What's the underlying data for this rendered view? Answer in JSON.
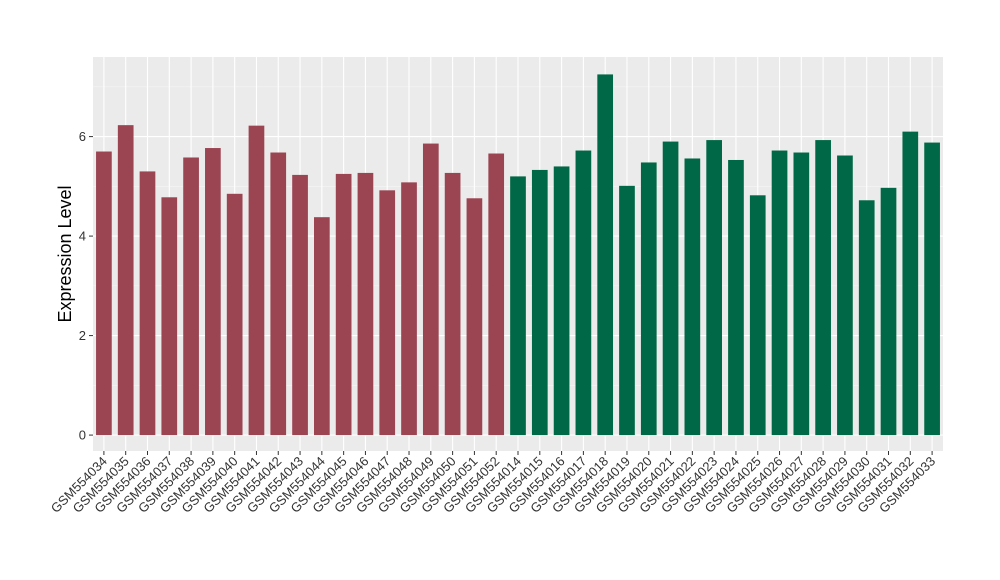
{
  "chart_data": {
    "type": "bar",
    "ylabel": "Expression Level",
    "xlabel": "",
    "ylim": [
      -0.32,
      7.6
    ],
    "yticks": [
      0,
      2,
      4,
      6
    ],
    "grid": true,
    "panel_background": "#ebebeb",
    "colors": {
      "group1": "#9b4452",
      "group2": "#006846"
    },
    "categories": [
      "GSM554034",
      "GSM554035",
      "GSM554036",
      "GSM554037",
      "GSM554038",
      "GSM554039",
      "GSM554040",
      "GSM554041",
      "GSM554042",
      "GSM554043",
      "GSM554044",
      "GSM554045",
      "GSM554046",
      "GSM554047",
      "GSM554048",
      "GSM554049",
      "GSM554050",
      "GSM554051",
      "GSM554052",
      "GSM554014",
      "GSM554015",
      "GSM554016",
      "GSM554017",
      "GSM554018",
      "GSM554019",
      "GSM554020",
      "GSM554021",
      "GSM554022",
      "GSM554023",
      "GSM554024",
      "GSM554025",
      "GSM554026",
      "GSM554027",
      "GSM554028",
      "GSM554029",
      "GSM554030",
      "GSM554031",
      "GSM554032",
      "GSM554033"
    ],
    "values": [
      5.7,
      6.23,
      5.3,
      4.78,
      5.58,
      5.77,
      4.85,
      6.22,
      5.68,
      5.23,
      4.38,
      5.25,
      5.27,
      4.92,
      5.08,
      5.86,
      5.27,
      4.76,
      5.66,
      5.2,
      5.33,
      5.4,
      5.72,
      7.25,
      5.01,
      5.48,
      5.9,
      5.56,
      5.93,
      5.53,
      4.82,
      5.72,
      5.68,
      5.93,
      5.62,
      4.72,
      4.97,
      6.1,
      5.88
    ],
    "groups": [
      1,
      1,
      1,
      1,
      1,
      1,
      1,
      1,
      1,
      1,
      1,
      1,
      1,
      1,
      1,
      1,
      1,
      1,
      1,
      2,
      2,
      2,
      2,
      2,
      2,
      2,
      2,
      2,
      2,
      2,
      2,
      2,
      2,
      2,
      2,
      2,
      2,
      2,
      2
    ]
  }
}
